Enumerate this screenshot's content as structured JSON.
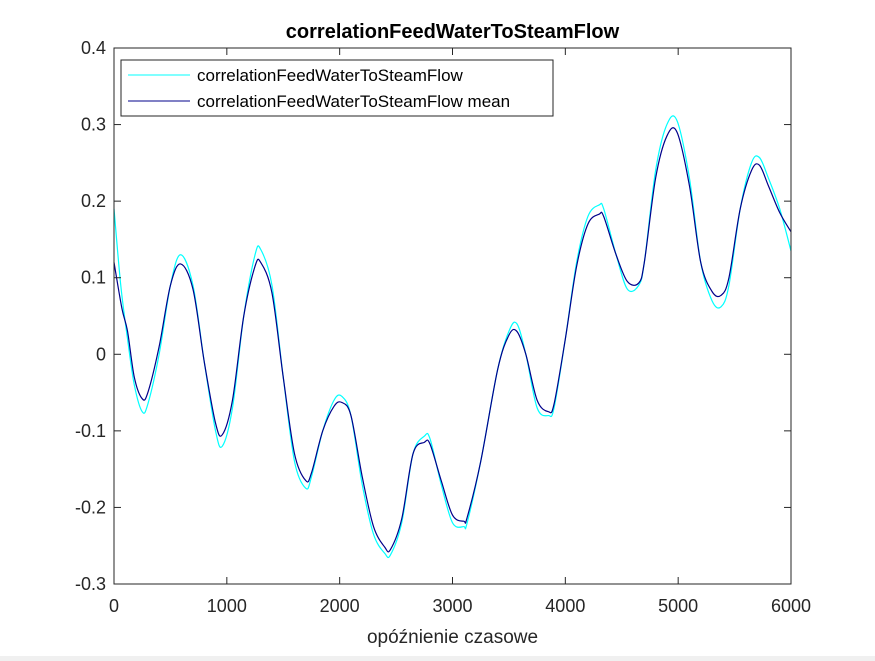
{
  "chart_data": {
    "type": "line",
    "title": "correlationFeedWaterToSteamFlow",
    "xlabel": "opóźnienie czasowe",
    "ylabel": "",
    "xlim": [
      0,
      6000
    ],
    "ylim": [
      -0.3,
      0.4
    ],
    "xticks": [
      0,
      1000,
      2000,
      3000,
      4000,
      5000,
      6000
    ],
    "yticks": [
      -0.3,
      -0.2,
      -0.1,
      0,
      0.1,
      0.2,
      0.3,
      0.4
    ],
    "xtick_labels": [
      "0",
      "1000",
      "2000",
      "3000",
      "4000",
      "5000",
      "6000"
    ],
    "ytick_labels": [
      "-0.3",
      "-0.2",
      "-0.1",
      "0",
      "0.1",
      "0.2",
      "0.3",
      "0.4"
    ],
    "grid": false,
    "legend": "top-left",
    "series": [
      {
        "name": "correlationFeedWaterToSteamFlow",
        "color": "#00ffff",
        "x": [
          0,
          60,
          120,
          180,
          250,
          300,
          400,
          500,
          590,
          700,
          800,
          900,
          960,
          1050,
          1150,
          1250,
          1300,
          1400,
          1500,
          1600,
          1700,
          1750,
          1850,
          1950,
          2020,
          2100,
          2200,
          2300,
          2400,
          2450,
          2550,
          2650,
          2750,
          2800,
          2900,
          3000,
          3100,
          3130,
          3250,
          3400,
          3500,
          3570,
          3650,
          3750,
          3850,
          3900,
          4000,
          4100,
          4200,
          4300,
          4340,
          4450,
          4550,
          4650,
          4700,
          4800,
          4900,
          4990,
          5100,
          5200,
          5300,
          5380,
          5450,
          5550,
          5650,
          5720,
          5800,
          5900,
          6000
        ],
        "y": [
          0.19,
          0.09,
          0.02,
          -0.04,
          -0.075,
          -0.065,
          0.0,
          0.09,
          0.13,
          0.09,
          -0.01,
          -0.1,
          -0.12,
          -0.07,
          0.05,
          0.13,
          0.137,
          0.09,
          -0.03,
          -0.14,
          -0.175,
          -0.16,
          -0.1,
          -0.06,
          -0.055,
          -0.08,
          -0.17,
          -0.235,
          -0.26,
          -0.262,
          -0.22,
          -0.13,
          -0.107,
          -0.11,
          -0.17,
          -0.22,
          -0.225,
          -0.22,
          -0.14,
          -0.02,
          0.03,
          0.04,
          0.0,
          -0.07,
          -0.08,
          -0.07,
          0.02,
          0.12,
          0.18,
          0.195,
          0.19,
          0.13,
          0.085,
          0.09,
          0.12,
          0.24,
          0.3,
          0.305,
          0.23,
          0.12,
          0.07,
          0.062,
          0.09,
          0.19,
          0.25,
          0.257,
          0.23,
          0.19,
          0.135
        ]
      },
      {
        "name": "correlationFeedWaterToSteamFlow mean",
        "color": "#00008b",
        "x": [
          0,
          70,
          120,
          180,
          250,
          300,
          400,
          500,
          590,
          700,
          800,
          900,
          960,
          1050,
          1150,
          1250,
          1300,
          1400,
          1500,
          1600,
          1700,
          1750,
          1850,
          1950,
          2020,
          2100,
          2200,
          2300,
          2400,
          2450,
          2550,
          2650,
          2750,
          2800,
          2900,
          3000,
          3100,
          3130,
          3250,
          3400,
          3500,
          3570,
          3650,
          3750,
          3850,
          3900,
          4000,
          4100,
          4200,
          4300,
          4340,
          4450,
          4550,
          4650,
          4700,
          4800,
          4900,
          4990,
          5100,
          5200,
          5300,
          5380,
          5450,
          5550,
          5650,
          5720,
          5800,
          5900,
          6000
        ],
        "y": [
          0.12,
          0.06,
          0.03,
          -0.03,
          -0.058,
          -0.05,
          0.01,
          0.09,
          0.118,
          0.085,
          -0.01,
          -0.09,
          -0.105,
          -0.06,
          0.05,
          0.115,
          0.12,
          0.08,
          -0.03,
          -0.13,
          -0.165,
          -0.155,
          -0.1,
          -0.068,
          -0.063,
          -0.08,
          -0.16,
          -0.225,
          -0.252,
          -0.255,
          -0.215,
          -0.13,
          -0.115,
          -0.117,
          -0.165,
          -0.21,
          -0.218,
          -0.213,
          -0.14,
          -0.02,
          0.025,
          0.03,
          0.0,
          -0.06,
          -0.075,
          -0.065,
          0.02,
          0.115,
          0.17,
          0.183,
          0.18,
          0.13,
          0.095,
          0.093,
          0.12,
          0.23,
          0.285,
          0.29,
          0.22,
          0.12,
          0.082,
          0.077,
          0.1,
          0.19,
          0.24,
          0.247,
          0.22,
          0.185,
          0.16
        ]
      }
    ]
  }
}
